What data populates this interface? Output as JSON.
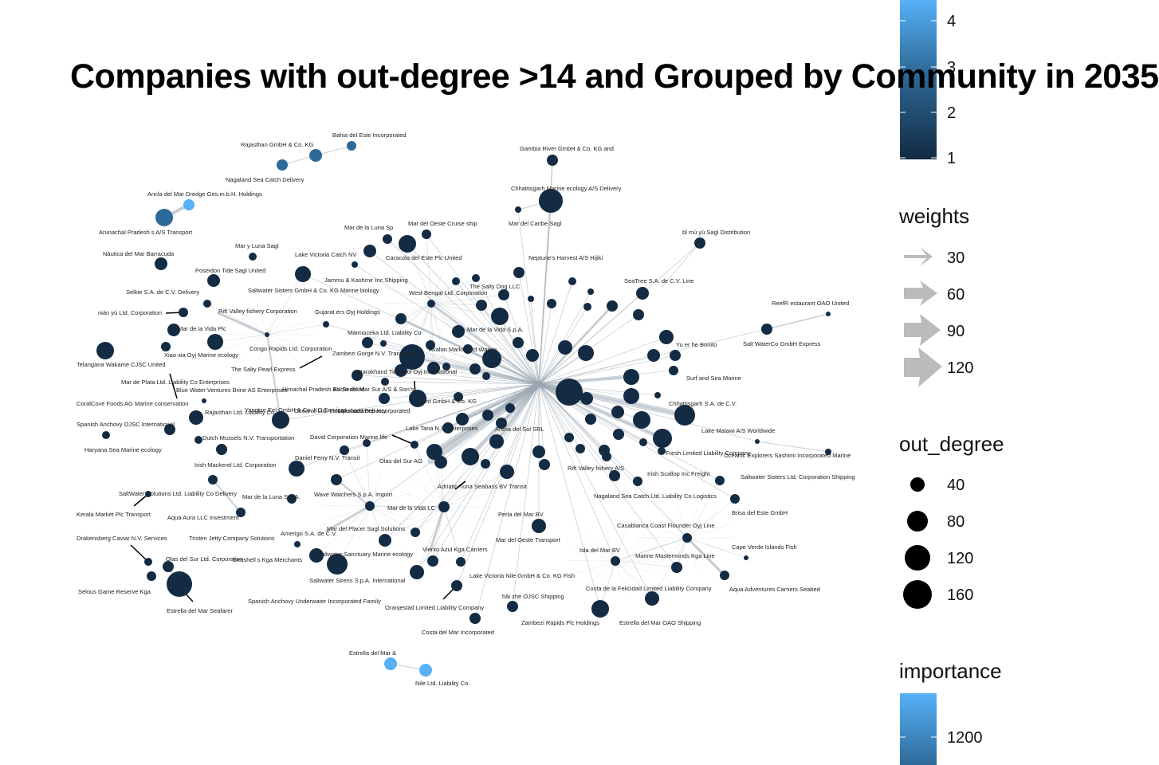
{
  "title": "Companies with out-degree >14 and Grouped by Community in 2035",
  "legend": {
    "color_ticks": [
      "4",
      "3",
      "2",
      "1"
    ],
    "weights_title": "weights",
    "weights_ticks": [
      "30",
      "60",
      "90",
      "120"
    ],
    "outdeg_title": "out_degree",
    "outdeg_ticks": [
      "40",
      "80",
      "120",
      "160"
    ],
    "importance_title": "importance",
    "importance_ticks": [
      "1200"
    ]
  },
  "colors": {
    "dark": "#132B43",
    "mid": "#2E6A99",
    "light": "#56B1F7",
    "edge": "#9AA6B2"
  },
  "labels": [
    "Bahia del Este Incorporated",
    "Rajasthan  GmbH & Co. KG",
    "Nagaland Sea Catch Delivery",
    "Ancla del Mar Dredge Ges.m.b.H. Holdings",
    "Arunachal Pradesh s A/S Transport",
    "Gambia River   GmbH & Co. KG and",
    "Chhattisgarh  Marine ecology A/S Delivery",
    "Mar del Caribe Sagl",
    "Mar de la Luna Sp",
    "Mar del Oeste Cruise ship",
    "Caracola del Este Plc United",
    "Mar y Luna Sagl",
    "Lake Victoria Catch  NV",
    "Náutica del Mar Barracuda",
    "Poseidon Tide Sagl United",
    "Jammu & Kashmir  Inc Shipping",
    "Neptune's Harvest A/S Hijiki",
    "bǐ mù yú Sagl Distribution",
    "Saltwater Sisters GmbH & Co. KG Marine biology",
    "West Bengal  Ltd. Corporation",
    "The Salty Dog LLC",
    "SeaTree S.A. de C.V. Line",
    "Selkie S.A. de C.V. Delivery",
    "Rift Valley fishery Corporation",
    "Gujarat ers Oyj Holdings",
    "nián yú Ltd. Corporation",
    "ReefR estaurant OAO United",
    "Mar de la Vida Plc",
    "Marmoceka Ltd. Liability Co",
    "Mar de la Vida S.p.A.",
    "Salt WaterCo GmbH Express",
    "Xiao xia Oyj Marine ecology",
    "Congo Rapids  Ltd. Corporation",
    "Zambezi Gorge  N.V. Transport",
    "Avalon  Market Ltd Waters",
    "Yu er he  Bonito",
    "Telangana  Wakame CJSC United",
    "The Salty Pearl Express",
    "Uttarakhand  Tidepool Oyj International",
    "Surf and Sea Marine",
    "Mar de Plata Ltd. Liability Co Enterprises",
    "Blue Water Ventures Brine AS Enterprises",
    "Himachal Pradesh  BV Seafood",
    "Lakshadweep Incorporated",
    "Ancla del Mar Sur A/S & Son's",
    "Chhattisgarh   S.A. de C.V.",
    "CoralCove Foods AG Marine conservation",
    "Rajasthan  Ltd. Liability Co",
    "Yangtze  Eel GmbH & Co. KG Services",
    "Oceanic  Ltd. Incorporated Delivery",
    "Sant GmbH & Co. KG",
    "Spanish Anchovy OJSC International",
    "Lake Tana  N.V. Enterprises",
    "Arena del Sol SRL",
    "Lake Malawi  A/S Worldwide",
    "Dutch Mussels N.V. Transportation",
    "David Corporation Marine life",
    "Haryana Sea  Marine ecology",
    "Fresh Limited Liability Company",
    "Oceanic Explorers Sashimi Incorporated Marine",
    "Daniel Ferry N.V. Transit",
    "Olas del Sur AG",
    "Irish Mackerel Ltd. Corporation",
    "Rift Valley fishery A/S",
    "Irish Scallop Inc Freight",
    "Saltwater Sisters Ltd. Corporation Shipping",
    "Adriatic Tuna Seabass BV Transit",
    "SaltWater Solutions Ltd. Liability Co Delivery",
    "Mar de la Luna S.p.A.",
    "Wave Watchers S.p.A. Import",
    "Nagaland Sea Catch Ltd. Liability Co Logistics",
    "Brisa del Este GmbH",
    "Kerala  Market Plc Transport",
    "Aqua Aura LLC Investment",
    "Mar de la Vida LC",
    "Perla del Mar BV",
    "Casablanca Coast  Flounder Oyj Line",
    "Tristen Jetty Company Solutions",
    "Amerigo S.A. de C.V.",
    "Mar del Placer Sagl Solutions",
    "Mar del Oeste Transport",
    "Drakensberg  Caviar N.V. Services",
    "Cape Verde Islands  Fish",
    "Olas del Sur Ltd. Corporation",
    "Seashell s  Kga Merchants",
    "Saltwater Sanctuary Marine ecology",
    "Viento Azul Kga Carriers",
    "Isla del Mar BV",
    "Marine Masterminds Kga Line",
    "Saltwater Sirens S.p.A. International",
    "Lake Victoria Nile    GmbH & Co. KG Fish",
    "Aqua Adventures Carriers Seabed",
    "Selous Game Reserve  Kga",
    "Costa de la Felicidad Limited Liability Company",
    "Spanish Anchovy Underwater Incorporated Family",
    "hǎi zhé OJSC Shipping",
    "Estrella del Mar Seafarer",
    "Oranjestad Limited Liability Company",
    "Zambezi Rapids  Plc Holdings",
    "Estrella del Mar OAO Shipping",
    "Costa del Mar Incorporated",
    "Estrella del Mar &",
    "Nile   Ltd. Liability Co"
  ]
}
